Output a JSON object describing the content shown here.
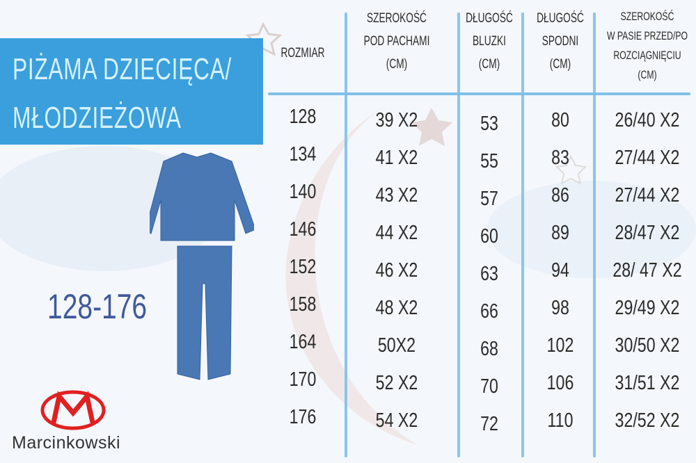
{
  "title": {
    "line1": "PIŻAMA DZIECIĘCA/",
    "line2": "MŁODZIEŻOWA"
  },
  "size_range": "128-176",
  "brand": "Marcinkowski",
  "colors": {
    "title_bg": "#3a9fdc",
    "title_text": "#d6f1fc",
    "range": "#3e5a9a",
    "grid": "#7fc0ea",
    "garment": "#4a78b5",
    "logo": "#e02020"
  },
  "table": {
    "headers": [
      [
        "ROZMIAR"
      ],
      [
        "SZEROKOŚĆ",
        "POD PACHAMI",
        "(CM)"
      ],
      [
        "DŁUGOŚĆ",
        "BLUZKI",
        "(CM)"
      ],
      [
        "DŁUGOŚĆ",
        "SPODNI",
        "(CM)"
      ],
      [
        "SZEROKOŚĆ",
        "W PASIE PRZED/PO",
        "ROZCIĄGNIĘCIU",
        "(CM)"
      ]
    ],
    "rows": [
      [
        "128",
        "39 X2",
        "53",
        "80",
        "26/40 X2"
      ],
      [
        "134",
        "41 X2",
        "55",
        "83",
        "27/44 X2"
      ],
      [
        "140",
        "43 X2",
        "57",
        "86",
        "27/44 X2"
      ],
      [
        "146",
        "44 X2",
        "60",
        "89",
        "28/47 X2"
      ],
      [
        "152",
        "46 X2",
        "63",
        "94",
        "28/ 47 X2"
      ],
      [
        "158",
        "48 X2",
        "66",
        "98",
        "29/49 X2"
      ],
      [
        "164",
        "50X2",
        "68",
        "102",
        "30/50 X2"
      ],
      [
        "170",
        "52 X2",
        "70",
        "106",
        "31/51 X2"
      ],
      [
        "176",
        "54 X2",
        "72",
        "110",
        "32/52 X2"
      ]
    ]
  }
}
